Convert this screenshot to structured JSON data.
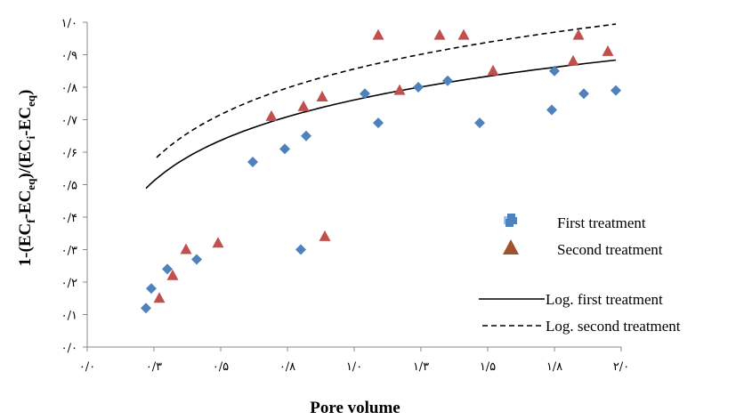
{
  "chart_data": {
    "type": "scatter",
    "xlabel": "Pore volume",
    "ylabel": {
      "prefix": "1-(EC",
      "sub1": "f",
      "mid1": "-EC",
      "sub2": "eq",
      "mid2": ")/(EC",
      "sub3": "i",
      "mid3": "-EC",
      "sub4": "eq",
      "suffix": ")"
    },
    "xlim": [
      0,
      2.0
    ],
    "ylim": [
      0,
      1.0
    ],
    "x_ticks": [
      {
        "value": 0.0,
        "label": "۰/۰"
      },
      {
        "value": 0.25,
        "label": "۰/۳"
      },
      {
        "value": 0.5,
        "label": "۰/۵"
      },
      {
        "value": 0.75,
        "label": "۰/۸"
      },
      {
        "value": 1.0,
        "label": "۱/۰"
      },
      {
        "value": 1.25,
        "label": "۱/۳"
      },
      {
        "value": 1.5,
        "label": "۱/۵"
      },
      {
        "value": 1.75,
        "label": "۱/۸"
      },
      {
        "value": 2.0,
        "label": "۲/۰"
      }
    ],
    "y_ticks": [
      {
        "value": 0.0,
        "label": "۰/۰"
      },
      {
        "value": 0.1,
        "label": "۰/۱"
      },
      {
        "value": 0.2,
        "label": "۰/۲"
      },
      {
        "value": 0.3,
        "label": "۰/۳"
      },
      {
        "value": 0.4,
        "label": "۰/۴"
      },
      {
        "value": 0.5,
        "label": "۰/۵"
      },
      {
        "value": 0.6,
        "label": "۰/۶"
      },
      {
        "value": 0.7,
        "label": "۰/۷"
      },
      {
        "value": 0.8,
        "label": "۰/۸"
      },
      {
        "value": 0.9,
        "label": "۰/۹"
      },
      {
        "value": 1.0,
        "label": "۱/۰"
      }
    ],
    "series": [
      {
        "name": "First treatment",
        "marker": "diamond",
        "color": "#4F81BD",
        "points": [
          [
            0.22,
            0.12
          ],
          [
            0.24,
            0.18
          ],
          [
            0.3,
            0.24
          ],
          [
            0.41,
            0.27
          ],
          [
            0.62,
            0.57
          ],
          [
            0.74,
            0.61
          ],
          [
            0.82,
            0.65
          ],
          [
            0.8,
            0.3
          ],
          [
            1.04,
            0.78
          ],
          [
            1.09,
            0.69
          ],
          [
            1.24,
            0.8
          ],
          [
            1.35,
            0.82
          ],
          [
            1.47,
            0.69
          ],
          [
            1.74,
            0.73
          ],
          [
            1.75,
            0.85
          ],
          [
            1.86,
            0.78
          ],
          [
            1.98,
            0.79
          ]
        ]
      },
      {
        "name": "Second treatment",
        "marker": "triangle",
        "color": "#C0504D",
        "points": [
          [
            0.27,
            0.15
          ],
          [
            0.32,
            0.22
          ],
          [
            0.37,
            0.3
          ],
          [
            0.49,
            0.32
          ],
          [
            0.69,
            0.71
          ],
          [
            0.81,
            0.74
          ],
          [
            0.88,
            0.77
          ],
          [
            0.89,
            0.34
          ],
          [
            1.09,
            0.96
          ],
          [
            1.17,
            0.79
          ],
          [
            1.32,
            0.96
          ],
          [
            1.41,
            0.96
          ],
          [
            1.52,
            0.85
          ],
          [
            1.82,
            0.88
          ],
          [
            1.84,
            0.96
          ],
          [
            1.95,
            0.91
          ]
        ]
      }
    ],
    "trendlines": [
      {
        "name": "Log. first treatment",
        "style": "solid",
        "a": 0.7607,
        "b": 0.1797,
        "x_range": [
          0.22,
          1.98
        ]
      },
      {
        "name": "Log. second treatment",
        "style": "dashed",
        "a": 0.8561,
        "b": 0.2023,
        "x_range": [
          0.26,
          1.98
        ]
      }
    ],
    "legend_placement": "right",
    "grid": false
  },
  "legend_markers": {
    "first": {
      "color": "#4F81BD",
      "shade": "#9DC3E6"
    },
    "second": {
      "color": "#A0522D"
    }
  }
}
